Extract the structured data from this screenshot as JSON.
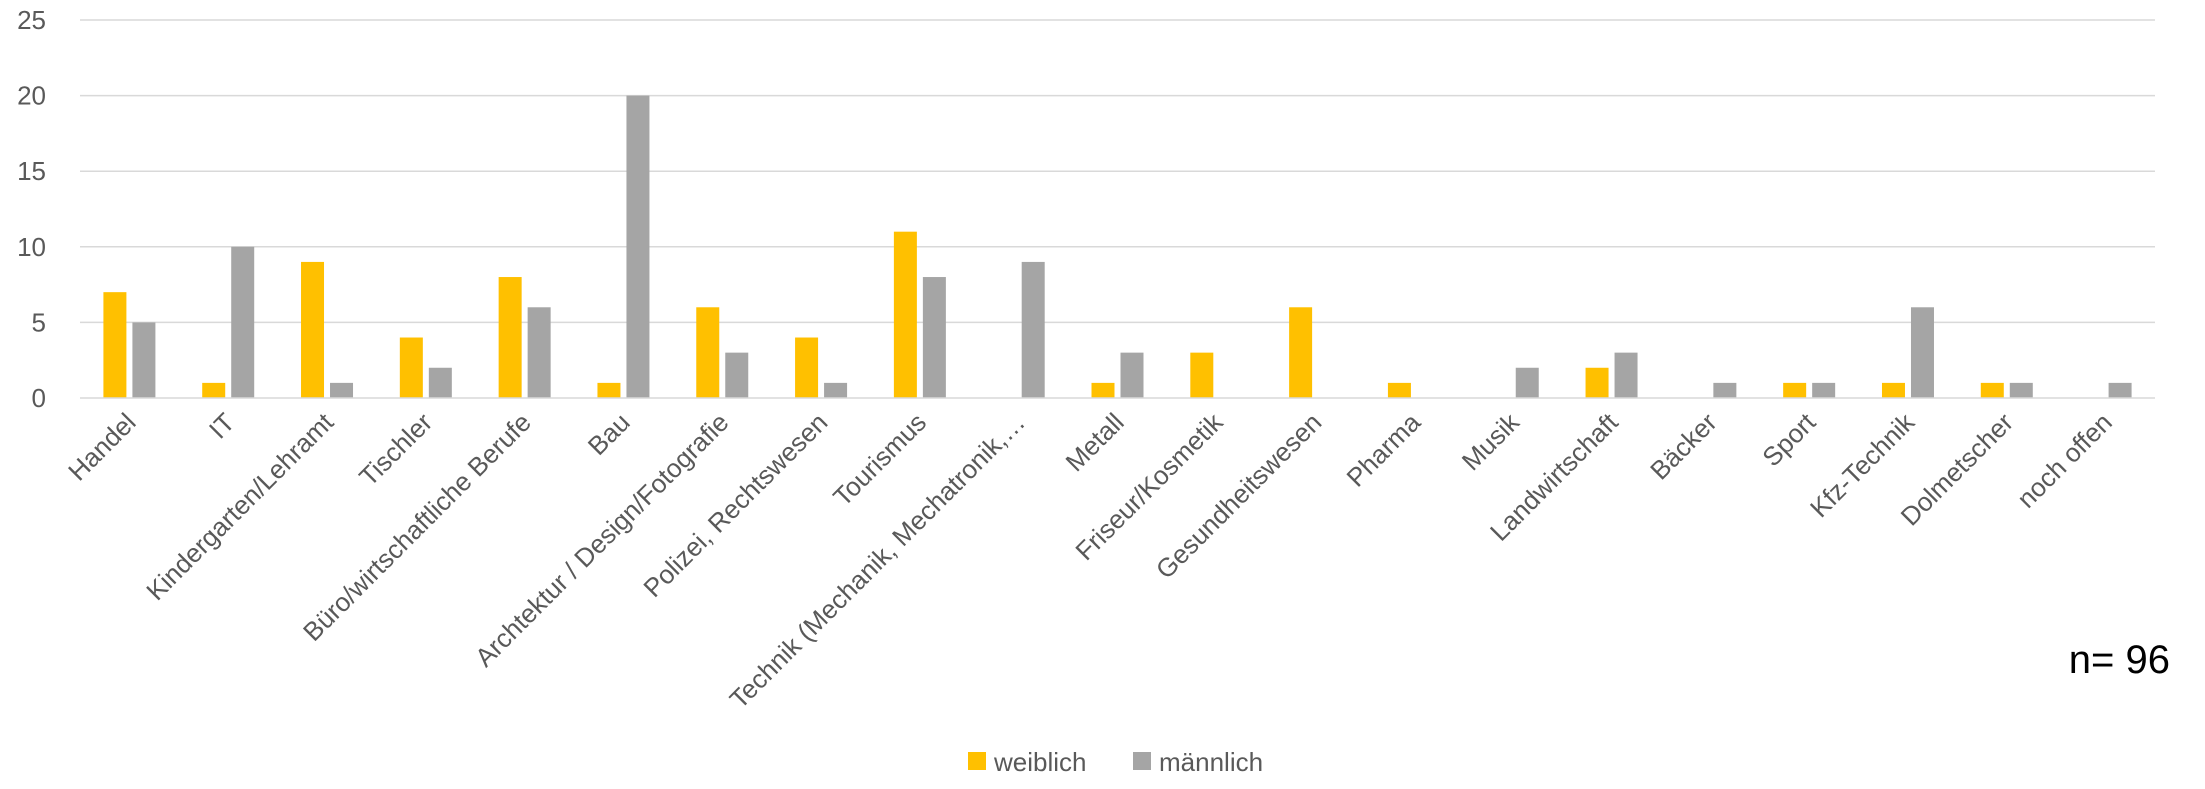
{
  "chart_data": {
    "type": "bar",
    "categories": [
      "Handel",
      "IT",
      "Kindergarten/Lehramt",
      "Tischler",
      "Büro/wirtschaftliche Berufe",
      "Bau",
      "Archtektur / Design/Fotografie",
      "Polizei, Rechtswesen",
      "Tourismus",
      "Technik (Mechanik, Mechatronik,…",
      "Metall",
      "Friseur/Kosmetik",
      "Gesundheitswesen",
      "Pharma",
      "Musik",
      "Landwirtschaft",
      "Bäcker",
      "Sport",
      "Kfz-Technik",
      "Dolmetscher",
      "noch offen"
    ],
    "series": [
      {
        "name": "weiblich",
        "color": "#FFC000",
        "values": [
          7,
          1,
          9,
          4,
          8,
          1,
          6,
          4,
          11,
          0,
          1,
          3,
          6,
          1,
          0,
          2,
          0,
          1,
          1,
          1,
          0
        ]
      },
      {
        "name": "männlich",
        "color": "#A5A5A5",
        "values": [
          5,
          10,
          1,
          2,
          6,
          20,
          3,
          1,
          8,
          9,
          3,
          0,
          0,
          0,
          2,
          3,
          1,
          1,
          6,
          1,
          1
        ]
      }
    ],
    "ylim": [
      0,
      25
    ],
    "yticks": [
      0,
      5,
      10,
      15,
      20,
      25
    ],
    "grid": true,
    "legend_position": "bottom",
    "annotation": "n= 96"
  }
}
